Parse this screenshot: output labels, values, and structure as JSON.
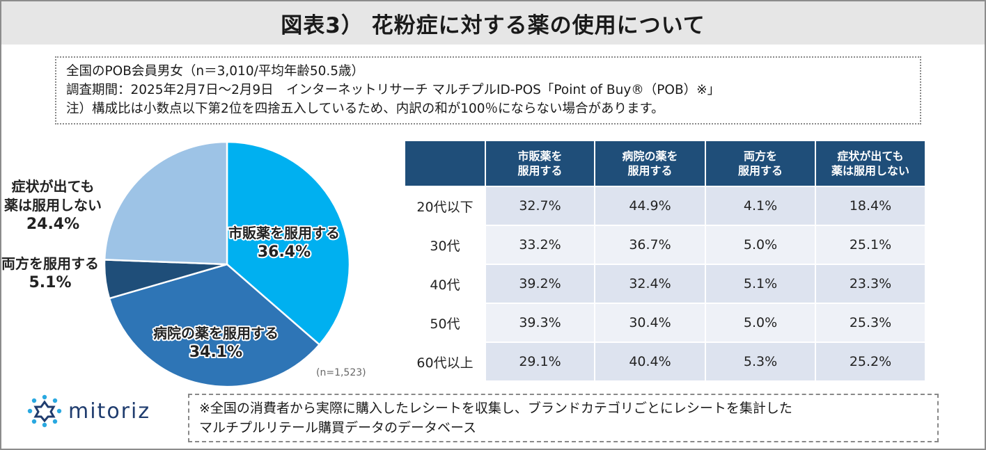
{
  "title": "図表3） 花粉症に対する薬の使用について",
  "notes": [
    "全国のPOB会員男女（n＝3,010/平均年齢50.5歳）",
    "調査期間：2025年2月7日～2月9日　インターネットリサーチ マルチプルID-POS「Point of Buy®（POB）※」",
    "注）構成比は小数点以下第2位を四捨五入しているため、内訳の和が100％にならない場合があります。"
  ],
  "footnote": [
    "※全国の消費者から実際に購入したレシートを収集し、ブランドカテゴリごとにレシートを集計した",
    "マルチプルリテール購買データのデータベース"
  ],
  "logo_text": "mitoriz",
  "colors": {
    "slice_1": "#00b0f0",
    "slice_2": "#2e75b6",
    "slice_3": "#1f4e79",
    "slice_4": "#9dc3e6",
    "header_bg": "#1f4e79"
  },
  "chart_data": [
    {
      "type": "pie",
      "sample_note": "(n=1,523)",
      "slices": [
        {
          "label": "市販薬を服用する",
          "value": 36.4,
          "display": "36.4%"
        },
        {
          "label": "病院の薬を服用する",
          "value": 34.1,
          "display": "34.1%"
        },
        {
          "label": "両方を服用する",
          "value": 5.1,
          "display": "5.1%"
        },
        {
          "label": "症状が出ても\n薬は服用しない",
          "value": 24.4,
          "display": "24.4%"
        }
      ]
    },
    {
      "type": "table",
      "columns": [
        "市販薬を\n服用する",
        "病院の薬を\n服用する",
        "両方を\n服用する",
        "症状が出ても\n薬は服用しない"
      ],
      "rows": [
        {
          "label": "20代以下",
          "values": [
            "32.7%",
            "44.9%",
            "4.1%",
            "18.4%"
          ]
        },
        {
          "label": "30代",
          "values": [
            "33.2%",
            "36.7%",
            "5.0%",
            "25.1%"
          ]
        },
        {
          "label": "40代",
          "values": [
            "39.2%",
            "32.4%",
            "5.1%",
            "23.3%"
          ]
        },
        {
          "label": "50代",
          "values": [
            "39.3%",
            "30.4%",
            "5.0%",
            "25.3%"
          ]
        },
        {
          "label": "60代以上",
          "values": [
            "29.1%",
            "40.4%",
            "5.3%",
            "25.2%"
          ]
        }
      ]
    }
  ]
}
